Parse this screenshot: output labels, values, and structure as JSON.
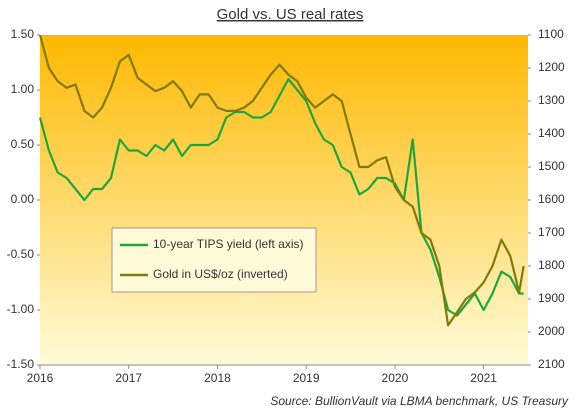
{
  "chart_data": {
    "type": "line",
    "title": "Gold vs. US real rates",
    "source": "Source: BullionVault via LBMA benchmark, US Treasury",
    "x": [
      2016.0,
      2016.1,
      2016.2,
      2016.3,
      2016.4,
      2016.5,
      2016.6,
      2016.7,
      2016.8,
      2016.9,
      2017.0,
      2017.1,
      2017.2,
      2017.3,
      2017.4,
      2017.5,
      2017.6,
      2017.7,
      2017.8,
      2017.9,
      2018.0,
      2018.1,
      2018.2,
      2018.3,
      2018.4,
      2018.5,
      2018.6,
      2018.7,
      2018.8,
      2018.9,
      2019.0,
      2019.1,
      2019.2,
      2019.3,
      2019.4,
      2019.5,
      2019.6,
      2019.7,
      2019.8,
      2019.9,
      2020.0,
      2020.1,
      2020.2,
      2020.3,
      2020.4,
      2020.5,
      2020.6,
      2020.7,
      2020.8,
      2020.9,
      2021.0,
      2021.1,
      2021.2,
      2021.3,
      2021.4,
      2021.45
    ],
    "series": [
      {
        "name": "10-year TIPS yield (left axis)",
        "color": "#1aa83c",
        "values": [
          0.75,
          0.45,
          0.25,
          0.2,
          0.1,
          0.0,
          0.1,
          0.1,
          0.2,
          0.55,
          0.45,
          0.45,
          0.4,
          0.5,
          0.45,
          0.55,
          0.4,
          0.5,
          0.5,
          0.5,
          0.55,
          0.75,
          0.8,
          0.8,
          0.75,
          0.75,
          0.8,
          0.95,
          1.1,
          1.0,
          0.9,
          0.7,
          0.55,
          0.5,
          0.3,
          0.25,
          0.05,
          0.1,
          0.2,
          0.2,
          0.15,
          0.0,
          0.55,
          -0.3,
          -0.45,
          -0.7,
          -1.0,
          -1.05,
          -0.95,
          -0.85,
          -1.0,
          -0.85,
          -0.65,
          -0.7,
          -0.85,
          -0.85
        ]
      },
      {
        "name": "Gold in US$/oz (inverted)",
        "color": "#7f7a0a",
        "axis": "y2",
        "values": [
          1100,
          1200,
          1240,
          1260,
          1250,
          1330,
          1350,
          1320,
          1260,
          1180,
          1160,
          1230,
          1250,
          1270,
          1260,
          1240,
          1270,
          1320,
          1280,
          1280,
          1320,
          1330,
          1330,
          1320,
          1300,
          1260,
          1220,
          1190,
          1220,
          1240,
          1290,
          1320,
          1300,
          1280,
          1300,
          1400,
          1500,
          1500,
          1480,
          1470,
          1560,
          1600,
          1620,
          1700,
          1720,
          1800,
          1980,
          1940,
          1900,
          1880,
          1850,
          1800,
          1720,
          1770,
          1880,
          1800
        ]
      }
    ],
    "xlim": [
      2016,
      2021.5
    ],
    "xticks": [
      2016,
      2017,
      2018,
      2019,
      2020,
      2021
    ],
    "ylim": [
      -1.5,
      1.5
    ],
    "yticks": [
      {
        "value": 1.5,
        "label": "1.50"
      },
      {
        "value": 1,
        "label": "1.00"
      },
      {
        "value": 0.5,
        "label": "0.50"
      },
      {
        "value": 0,
        "label": "0.00"
      },
      {
        "value": -0.5,
        "label": "-0.50"
      },
      {
        "value": -1,
        "label": "-1.00"
      },
      {
        "value": -1.5,
        "label": "-1.50"
      }
    ],
    "y2lim": [
      2100,
      1100
    ],
    "y2ticks": [
      1100,
      1200,
      1300,
      1400,
      1500,
      1600,
      1700,
      1800,
      1900,
      2000,
      2100
    ],
    "grid": false
  }
}
